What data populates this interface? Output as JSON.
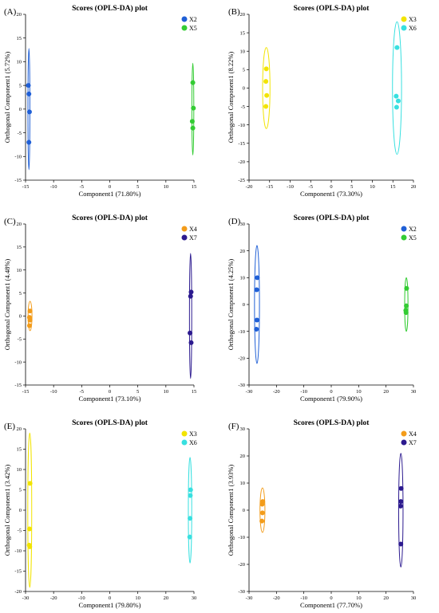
{
  "chart_data": [
    {
      "panel": "(A)",
      "type": "scatter",
      "title": "Scores (OPLS-DA) plot",
      "xlabel": "Component1 (71.80%)",
      "ylabel": "Orthogonal Component1 (5.72%)",
      "xlim": [
        -15,
        15
      ],
      "ylim": [
        -15,
        20
      ],
      "xticks": [
        -15,
        -10,
        -5,
        0,
        5,
        10,
        15
      ],
      "yticks": [
        -15,
        -10,
        -5,
        0,
        5,
        10,
        15,
        20
      ],
      "legend_position": "top-right",
      "series": [
        {
          "name": "X2",
          "color": "#1f5fd6",
          "x": [
            -14.5,
            -14.4,
            -14.3,
            -14.4
          ],
          "y": [
            5,
            3.2,
            -0.6,
            -7
          ],
          "ellipse": {
            "cx": -14.4,
            "cy": 0,
            "rx": 0.15,
            "ry": 12.8
          }
        },
        {
          "name": "X5",
          "color": "#33cc33",
          "x": [
            14.8,
            14.9,
            14.7,
            14.8
          ],
          "y": [
            5.6,
            0.2,
            -2.6,
            -4
          ],
          "ellipse": {
            "cx": 14.8,
            "cy": 0,
            "rx": 0.15,
            "ry": 9.7
          }
        }
      ]
    },
    {
      "panel": "(B)",
      "type": "scatter",
      "title": "Scores (OPLS-DA) plot",
      "xlabel": "Component1 (73.30%)",
      "ylabel": "Orthogonal Component1 (8.22%)",
      "xlim": [
        -20,
        20
      ],
      "ylim": [
        -25,
        20
      ],
      "xticks": [
        -20,
        -15,
        -10,
        -5,
        0,
        5,
        10,
        15,
        20
      ],
      "yticks": [
        -25,
        -20,
        -15,
        -10,
        -5,
        0,
        5,
        10,
        15,
        20
      ],
      "legend_position": "top-right",
      "series": [
        {
          "name": "X3",
          "color": "#f2e400",
          "x": [
            -15.8,
            -15.9,
            -15.7,
            -15.9
          ],
          "y": [
            5.2,
            1.8,
            -2,
            -5
          ],
          "ellipse": {
            "cx": -15.8,
            "cy": 0,
            "rx": 0.9,
            "ry": 11
          }
        },
        {
          "name": "X6",
          "color": "#38e0e0",
          "x": [
            16,
            15.8,
            16.3,
            15.9
          ],
          "y": [
            11,
            -2.2,
            -3.5,
            -5.2
          ],
          "ellipse": {
            "cx": 16,
            "cy": 0,
            "rx": 1.1,
            "ry": 18
          }
        }
      ]
    },
    {
      "panel": "(C)",
      "type": "scatter",
      "title": "Scores (OPLS-DA) plot",
      "xlabel": "Component1 (73.10%)",
      "ylabel": "Orthogonal Component1 (4.48%)",
      "xlim": [
        -15,
        15
      ],
      "ylim": [
        -15,
        20
      ],
      "xticks": [
        -15,
        -10,
        -5,
        0,
        5,
        10,
        15
      ],
      "yticks": [
        -15,
        -10,
        -5,
        0,
        5,
        10,
        15,
        20
      ],
      "legend_position": "top-right",
      "series": [
        {
          "name": "X4",
          "color": "#f39c1a",
          "x": [
            -14.2,
            -14.3,
            -14.2,
            -14.3
          ],
          "y": [
            1.1,
            -0.3,
            -0.9,
            -2.1
          ],
          "ellipse": {
            "cx": -14.2,
            "cy": 0,
            "rx": 0.35,
            "ry": 3.2
          }
        },
        {
          "name": "X7",
          "color": "#2c1a8f",
          "x": [
            14.5,
            14.4,
            14.3,
            14.5
          ],
          "y": [
            5.2,
            4.3,
            -3.7,
            -5.8
          ],
          "ellipse": {
            "cx": 14.4,
            "cy": 0,
            "rx": 0.2,
            "ry": 13.6
          }
        }
      ]
    },
    {
      "panel": "(D)",
      "type": "scatter",
      "title": "Scores (OPLS-DA) plot",
      "xlabel": "Component1 (79.90%)",
      "ylabel": "Orthogonal Component1 (4.25%)",
      "xlim": [
        -30,
        30
      ],
      "ylim": [
        -30,
        30
      ],
      "xticks": [
        -30,
        -20,
        -10,
        0,
        10,
        20,
        30
      ],
      "yticks": [
        -30,
        -20,
        -10,
        0,
        10,
        20,
        30
      ],
      "legend_position": "top-right",
      "series": [
        {
          "name": "X2",
          "color": "#1f5fd6",
          "x": [
            -27,
            -27.2,
            -27.1,
            -27.3
          ],
          "y": [
            10,
            5.5,
            -5.8,
            -9.2
          ],
          "ellipse": {
            "cx": -27.1,
            "cy": 0,
            "rx": 0.9,
            "ry": 22
          }
        },
        {
          "name": "X5",
          "color": "#33cc33",
          "x": [
            27.5,
            27.4,
            27.2,
            27.3
          ],
          "y": [
            6,
            -0.5,
            -2.2,
            -3
          ],
          "ellipse": {
            "cx": 27.4,
            "cy": 0,
            "rx": 0.6,
            "ry": 10
          }
        }
      ]
    },
    {
      "panel": "(E)",
      "type": "scatter",
      "title": "Scores (OPLS-DA) plot",
      "xlabel": "Component1 (79.80%)",
      "ylabel": "Orthogonal Component1 (3.42%)",
      "xlim": [
        -30,
        30
      ],
      "ylim": [
        -20,
        20
      ],
      "xticks": [
        -30,
        -20,
        -10,
        0,
        10,
        20,
        30
      ],
      "yticks": [
        -20,
        -15,
        -10,
        -5,
        0,
        5,
        10,
        15,
        20
      ],
      "legend_position": "top-right",
      "series": [
        {
          "name": "X3",
          "color": "#f2e400",
          "x": [
            -28.4,
            -28.6,
            -28.7,
            -28.5
          ],
          "y": [
            6.6,
            -4.6,
            -8.6,
            -9
          ],
          "ellipse": {
            "cx": -28.5,
            "cy": 0,
            "rx": 0.7,
            "ry": 19
          }
        },
        {
          "name": "X6",
          "color": "#38e0e0",
          "x": [
            28.8,
            28.7,
            28.6,
            28.5
          ],
          "y": [
            5,
            3.6,
            -2,
            -6.6
          ],
          "ellipse": {
            "cx": 28.6,
            "cy": 0,
            "rx": 0.6,
            "ry": 13
          }
        }
      ]
    },
    {
      "panel": "(F)",
      "type": "scatter",
      "title": "Scores (OPLS-DA) plot",
      "xlabel": "Component1 (77.70%)",
      "ylabel": "Orthogonal Component1 (3.93%)",
      "xlim": [
        -30,
        30
      ],
      "ylim": [
        -30,
        30
      ],
      "xticks": [
        -30,
        -20,
        -10,
        0,
        10,
        20,
        30
      ],
      "yticks": [
        -30,
        -20,
        -10,
        0,
        10,
        20,
        30
      ],
      "legend_position": "top-right",
      "series": [
        {
          "name": "X4",
          "color": "#f39c1a",
          "x": [
            -25,
            -25.2,
            -25.1,
            -25.3
          ],
          "y": [
            3.2,
            2.2,
            -1,
            -4
          ],
          "ellipse": {
            "cx": -25.1,
            "cy": 0,
            "rx": 0.9,
            "ry": 8.2
          }
        },
        {
          "name": "X7",
          "color": "#2c1a8f",
          "x": [
            25.5,
            25.4,
            25.3,
            25.4
          ],
          "y": [
            8,
            3.2,
            1.5,
            -12.5
          ],
          "ellipse": {
            "cx": 25.4,
            "cy": 0,
            "rx": 0.8,
            "ry": 21
          }
        }
      ]
    }
  ]
}
